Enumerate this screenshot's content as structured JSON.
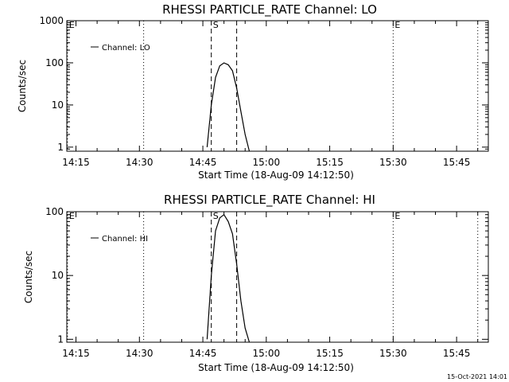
{
  "footer": "15-Oct-2021 14:01",
  "chart_data": [
    {
      "type": "line",
      "title": "RHESSI PARTICLE_RATE Channel: LO",
      "xlabel": "Start Time (18-Aug-09 14:12:50)",
      "ylabel": "Counts/sec",
      "yscale": "log",
      "ylim": [
        0.8,
        1000
      ],
      "xlim": [
        "14:12:50",
        "15:52:30"
      ],
      "x_ticks": [
        "14:15",
        "14:30",
        "14:45",
        "15:00",
        "15:15",
        "15:30",
        "15:45"
      ],
      "y_ticks": [
        "1",
        "10",
        "100",
        "1000"
      ],
      "legend": "Channel: LO",
      "legend_position": "top-left",
      "markers": [
        {
          "label": "E",
          "style": "dotted",
          "x": [
            "14:13",
            "14:31"
          ]
        },
        {
          "label": "S",
          "style": "dashed",
          "x": [
            "14:47",
            "14:53"
          ]
        },
        {
          "label": "E",
          "style": "dotted",
          "x": [
            "15:30",
            "15:50"
          ]
        }
      ],
      "series": [
        {
          "name": "Channel: LO",
          "x": [
            "14:46",
            "14:47",
            "14:48",
            "14:49",
            "14:50",
            "14:51",
            "14:52",
            "14:53",
            "14:54",
            "14:55",
            "14:56"
          ],
          "y": [
            1,
            10,
            45,
            85,
            100,
            90,
            65,
            25,
            7,
            2,
            0.8
          ]
        }
      ]
    },
    {
      "type": "line",
      "title": "RHESSI PARTICLE_RATE Channel: HI",
      "xlabel": "Start Time (18-Aug-09 14:12:50)",
      "ylabel": "Counts/sec",
      "yscale": "log",
      "ylim": [
        0.9,
        100
      ],
      "xlim": [
        "14:12:50",
        "15:52:30"
      ],
      "x_ticks": [
        "14:15",
        "14:30",
        "14:45",
        "15:00",
        "15:15",
        "15:30",
        "15:45"
      ],
      "y_ticks": [
        "1",
        "10",
        "100"
      ],
      "legend": "Channel: HI",
      "legend_position": "top-left",
      "markers": [
        {
          "label": "E",
          "style": "dotted",
          "x": [
            "14:13",
            "14:31"
          ]
        },
        {
          "label": "S",
          "style": "dashed",
          "x": [
            "14:47",
            "14:53"
          ]
        },
        {
          "label": "E",
          "style": "dotted",
          "x": [
            "15:30",
            "15:50"
          ]
        }
      ],
      "series": [
        {
          "name": "Channel: HI",
          "x": [
            "14:46",
            "14:47",
            "14:48",
            "14:49",
            "14:50",
            "14:51",
            "14:52",
            "14:53",
            "14:54",
            "14:55",
            "14:56"
          ],
          "y": [
            1,
            10,
            50,
            80,
            90,
            70,
            45,
            15,
            4,
            1.5,
            0.8
          ]
        }
      ]
    }
  ]
}
